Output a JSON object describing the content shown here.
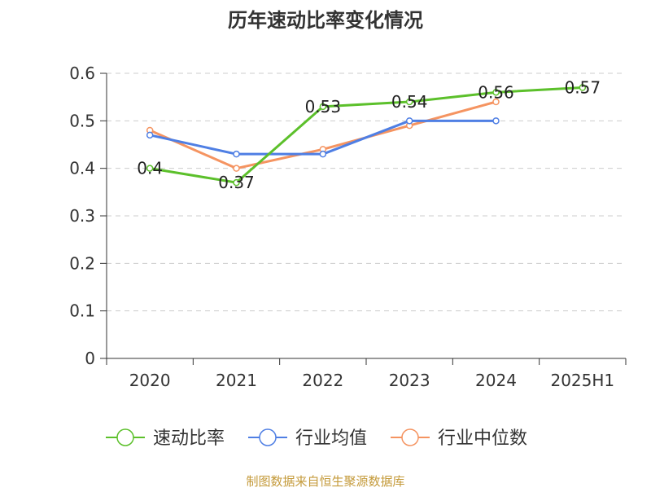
{
  "title": "历年速动比率变化情况",
  "footer": "制图数据来自恒生聚源数据库",
  "colors": {
    "series_green": "#5cc02b",
    "series_blue": "#4f7fe4",
    "series_orange": "#f59461",
    "footer": "#c49a3a",
    "axis": "#333333",
    "grid": "#cccccc"
  },
  "chart_data": {
    "type": "line",
    "title": "历年速动比率变化情况",
    "x": [
      "2020",
      "2021",
      "2022",
      "2023",
      "2024",
      "2025H1"
    ],
    "ylim": [
      0,
      0.6
    ],
    "yticks": [
      "0",
      "0.1",
      "0.2",
      "0.3",
      "0.4",
      "0.5",
      "0.6"
    ],
    "grid": true,
    "legend_position": "bottom",
    "series": [
      {
        "name": "速动比率",
        "values": [
          0.4,
          0.37,
          0.53,
          0.54,
          0.56,
          0.57
        ],
        "labels": [
          "0.4",
          "0.37",
          "0.53",
          "0.54",
          "0.56",
          "0.57"
        ],
        "color": "#5cc02b"
      },
      {
        "name": "行业均值",
        "values": [
          0.47,
          0.43,
          0.43,
          0.5,
          0.5,
          null
        ],
        "color": "#4f7fe4"
      },
      {
        "name": "行业中位数",
        "values": [
          0.48,
          0.4,
          0.44,
          0.49,
          0.54,
          null
        ],
        "color": "#f59461"
      }
    ]
  }
}
